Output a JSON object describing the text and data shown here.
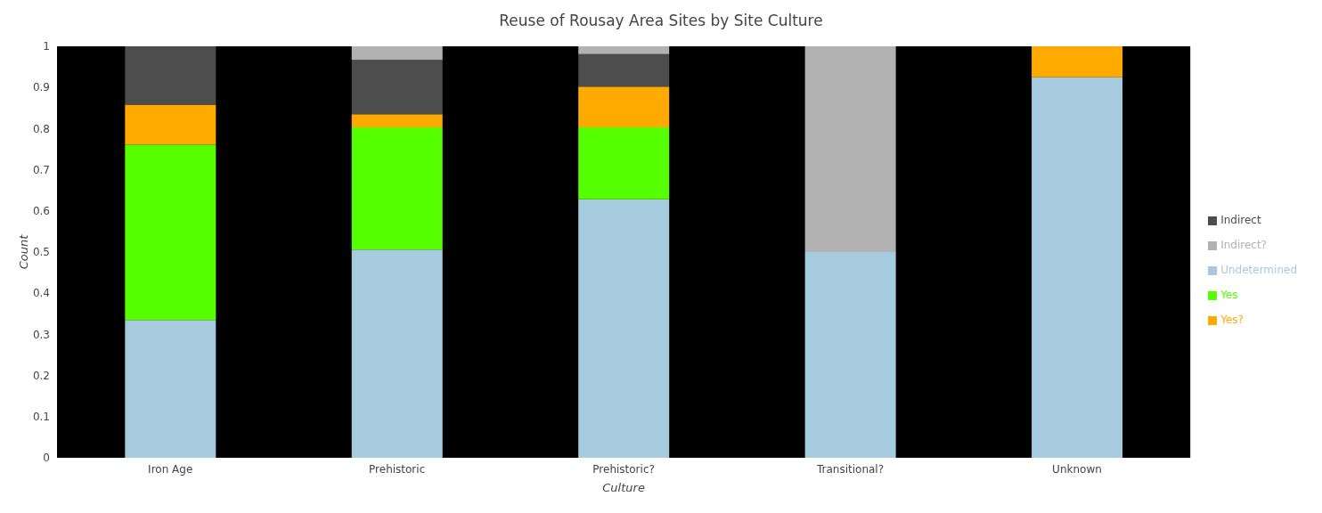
{
  "chart_data": {
    "type": "bar",
    "title": "Reuse of Rousay Area Sites by Site Culture",
    "xlabel": "Culture",
    "ylabel": "Count",
    "categories": [
      "Iron Age",
      "Prehistoric",
      "Prehistoric?",
      "Transitional?",
      "Unknown"
    ],
    "stacked": true,
    "ylim": [
      0,
      1
    ],
    "yticks": [
      0,
      0.1,
      0.2,
      0.3,
      0.4,
      0.5,
      0.6,
      0.7,
      0.8,
      0.9,
      1
    ],
    "grid": false,
    "legend": "right",
    "series": [
      {
        "name": "Undetermined",
        "color": "#a6cbdf",
        "values": [
          0.335,
          0.506,
          0.628,
          0.5,
          0.925
        ]
      },
      {
        "name": "Yes",
        "color": "#55ff00",
        "values": [
          0.426,
          0.297,
          0.175,
          0,
          0
        ]
      },
      {
        "name": "Yes?",
        "color": "#ffaa00",
        "values": [
          0.097,
          0.032,
          0.099,
          0,
          0.075
        ]
      },
      {
        "name": "Indirect",
        "color": "#4d4d4d",
        "values": [
          0.142,
          0.132,
          0.079,
          0,
          0
        ]
      },
      {
        "name": "Indirect?",
        "color": "#b2b2b2",
        "values": [
          0,
          0.033,
          0.019,
          0.5,
          0
        ]
      }
    ]
  }
}
